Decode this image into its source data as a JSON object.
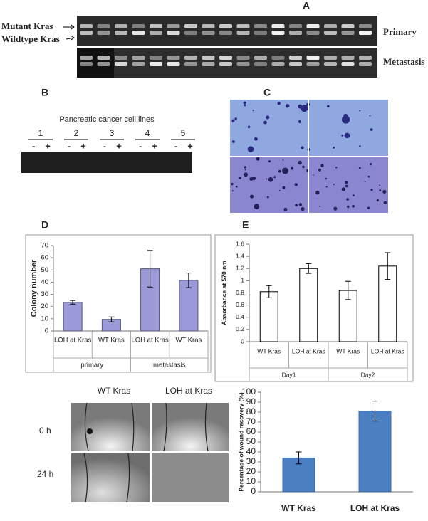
{
  "labels": {
    "panel_a": {
      "letter": "A",
      "mutant": "Mutant Kras",
      "wildtype": "Wildtype Kras",
      "primary": "Primary",
      "metastasis": "Metastasis"
    },
    "panel_b": {
      "letter": "B",
      "title": "Pancreatic cancer cell lines",
      "lanes": [
        "1",
        "2",
        "3",
        "4",
        "5"
      ],
      "signs": [
        "-",
        "+"
      ]
    },
    "panel_c": {
      "letter": "C"
    },
    "panel_d": {
      "letter": "D"
    },
    "panel_e": {
      "letter": "E"
    },
    "wound": {
      "columns": [
        "WT Kras",
        "LOH at Kras"
      ],
      "rows": [
        "0 h",
        "24 h"
      ]
    }
  },
  "chart_data": [
    {
      "type": "bar",
      "ylabel": "Colony number",
      "categories": [
        "LOH at Kras",
        "WT Kras",
        "LOH at Kras",
        "WT Kras"
      ],
      "group_labels": [
        "primary",
        "metastasis"
      ],
      "series": [
        {
          "color": "#9a9ad8",
          "edgecolor": "#555577",
          "values": [
            23.5,
            9.5,
            51,
            41.5
          ],
          "errors": [
            1.5,
            2,
            15,
            6
          ]
        }
      ],
      "ylim": [
        0,
        70
      ],
      "yticks": [
        0,
        10,
        20,
        30,
        40,
        50,
        60,
        70
      ]
    },
    {
      "type": "bar",
      "ylabel": "Absorbance at 570 nm",
      "categories": [
        "WT Kras",
        "LOH at Kras",
        "WT Kras",
        "LOH at Kras"
      ],
      "group_labels": [
        "Day1",
        "Day2"
      ],
      "series": [
        {
          "color": "#ffffff",
          "edgecolor": "#000000",
          "values": [
            0.82,
            1.2,
            0.84,
            1.24
          ],
          "errors": [
            0.1,
            0.08,
            0.15,
            0.22
          ]
        }
      ],
      "ylim": [
        0,
        1.6
      ],
      "yticks": [
        0,
        0.2,
        0.4,
        0.6,
        0.8,
        1,
        1.2,
        1.4,
        1.6
      ]
    },
    {
      "type": "bar",
      "ylabel": "Percentage of wound recovery (%)",
      "categories": [
        "WT Kras",
        "LOH at Kras"
      ],
      "series": [
        {
          "color": "#4a7fc1",
          "edgecolor": "#3a66a0",
          "values": [
            34,
            81
          ],
          "errors": [
            6,
            10
          ]
        }
      ],
      "ylim": [
        0,
        100
      ],
      "yticks": [
        0,
        10,
        20,
        30,
        40,
        50,
        60,
        70,
        80,
        90,
        100
      ]
    }
  ]
}
